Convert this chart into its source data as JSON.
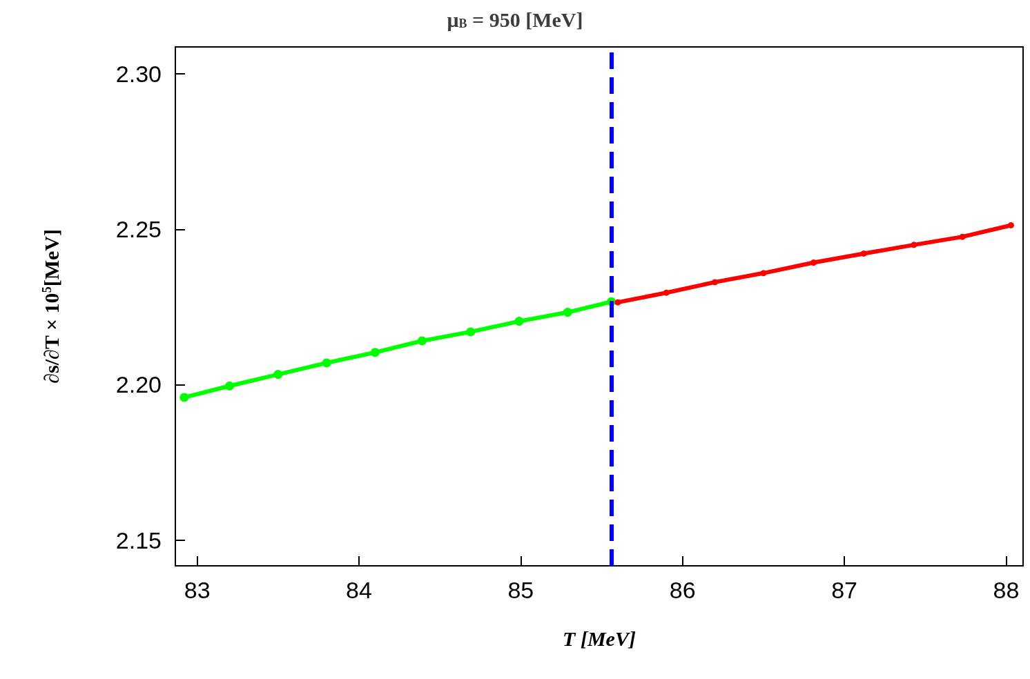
{
  "chart_data": {
    "type": "line",
    "title": "μ$_{B}$ = 950 [MeV]",
    "xlabel": "T [MeV]",
    "ylabel": "∂s/∂T × 10$^{5}$[MeV]",
    "xlim": [
      82.865,
      88.105
    ],
    "xticks": [
      83,
      84,
      85,
      86,
      87,
      88
    ],
    "ylim": [
      2.1417,
      2.3087
    ],
    "yticks": [
      2.15,
      {
        "value": 2.2,
        "label": "2.20"
      },
      2.25,
      {
        "value": 2.3,
        "label": "2.30"
      }
    ],
    "grid": false,
    "marker": "circle",
    "line_style": "solid",
    "series": [
      {
        "color": "#00ff00",
        "x": [
          82.92,
          83.2,
          83.5,
          83.8,
          84.1,
          84.39,
          84.69,
          84.99,
          85.29,
          85.56
        ],
        "values": [
          2.1959,
          2.1996,
          2.2033,
          2.207,
          2.2104,
          2.2141,
          2.217,
          2.2204,
          2.2233,
          2.2267
        ]
      },
      {
        "color": "#ff0000",
        "x": [
          85.6,
          85.9,
          86.2,
          86.5,
          86.81,
          87.12,
          87.43,
          87.73,
          88.03
        ],
        "values": [
          2.2265,
          2.2296,
          2.233,
          2.2359,
          2.2393,
          2.2422,
          2.245,
          2.2476,
          2.2513
        ]
      }
    ],
    "ref_lines": [
      {
        "axis": "x",
        "value": 85.56,
        "color": "#0000ff",
        "line_style": "dashed"
      }
    ]
  }
}
